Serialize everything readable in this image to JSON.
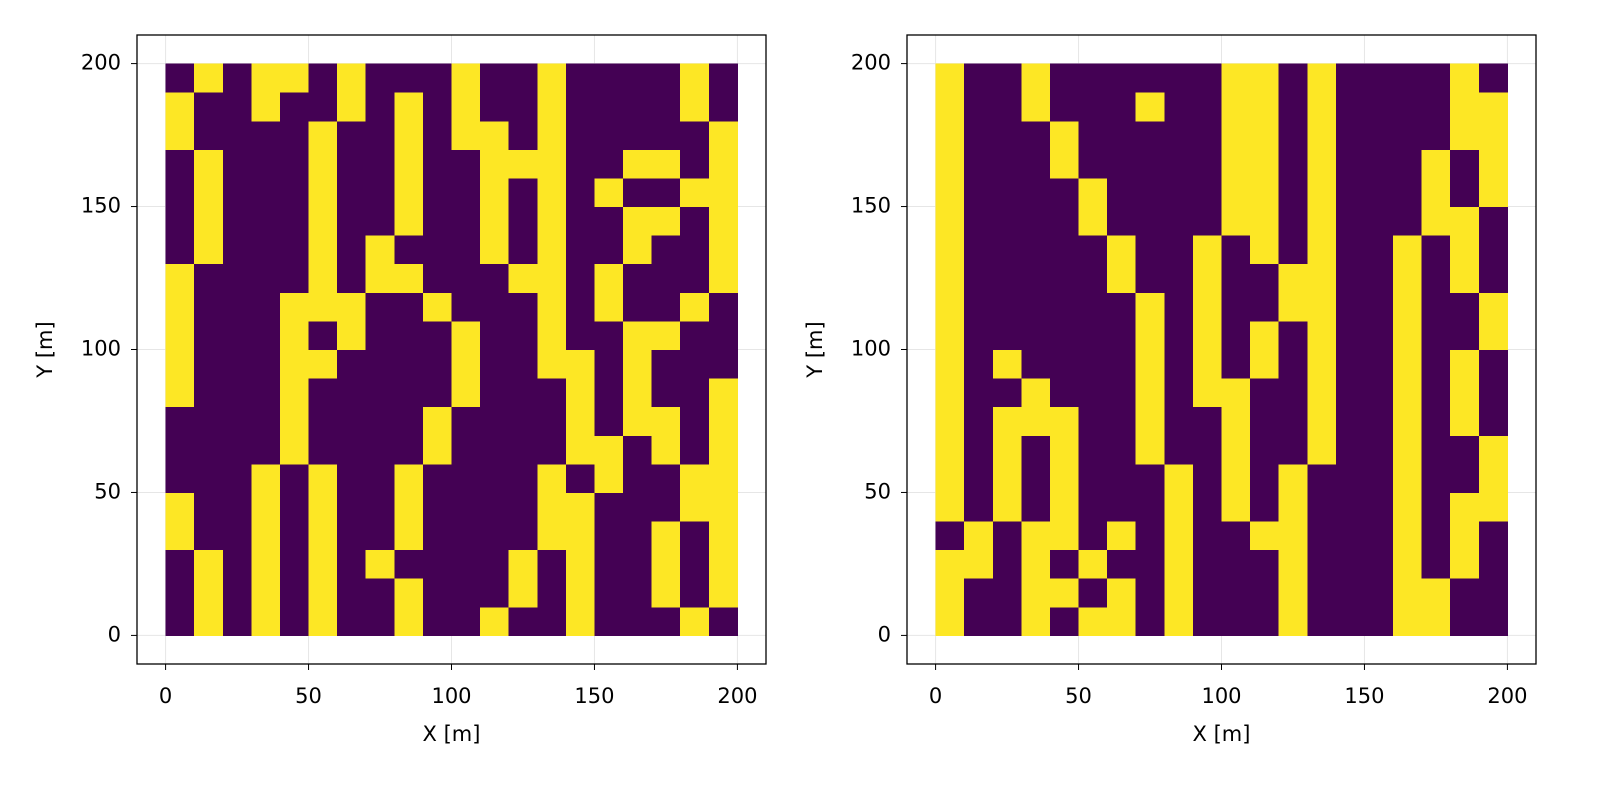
{
  "chart_data": [
    {
      "type": "heatmap",
      "xlabel": "X [m]",
      "ylabel": "Y [m]",
      "xlim": [
        -10,
        210
      ],
      "ylim": [
        -10,
        210
      ],
      "xticks": [
        0,
        50,
        100,
        150,
        200
      ],
      "yticks": [
        0,
        50,
        100,
        150,
        200
      ],
      "grid": true,
      "colors": [
        "#440154",
        "#fde725"
      ],
      "xbins": [
        0,
        10,
        20,
        30,
        40,
        50,
        60,
        70,
        80,
        90,
        100,
        110,
        120,
        130,
        140,
        150,
        160,
        170,
        180,
        190,
        200
      ],
      "ybins": [
        0,
        10,
        20,
        30,
        40,
        50,
        60,
        70,
        80,
        90,
        100,
        110,
        120,
        130,
        140,
        150,
        160,
        170,
        180,
        190,
        200
      ],
      "z": [
        [
          0,
          1,
          0,
          1,
          0,
          1,
          0,
          0,
          1,
          0,
          0,
          1,
          0,
          0,
          1,
          0,
          0,
          0,
          1,
          0
        ],
        [
          0,
          1,
          0,
          1,
          0,
          1,
          0,
          0,
          1,
          0,
          0,
          0,
          1,
          0,
          1,
          0,
          0,
          1,
          0,
          1
        ],
        [
          0,
          1,
          0,
          1,
          0,
          1,
          0,
          1,
          0,
          0,
          0,
          0,
          1,
          0,
          1,
          0,
          0,
          1,
          0,
          1
        ],
        [
          1,
          0,
          0,
          1,
          0,
          1,
          0,
          0,
          1,
          0,
          0,
          0,
          0,
          1,
          1,
          0,
          0,
          1,
          0,
          1
        ],
        [
          1,
          0,
          0,
          1,
          0,
          1,
          0,
          0,
          1,
          0,
          0,
          0,
          0,
          1,
          1,
          0,
          0,
          0,
          1,
          1
        ],
        [
          0,
          0,
          0,
          1,
          0,
          1,
          0,
          0,
          1,
          0,
          0,
          0,
          0,
          1,
          0,
          1,
          0,
          0,
          1,
          1
        ],
        [
          0,
          0,
          0,
          0,
          1,
          0,
          0,
          0,
          0,
          1,
          0,
          0,
          0,
          0,
          1,
          1,
          0,
          1,
          0,
          1
        ],
        [
          0,
          0,
          0,
          0,
          1,
          0,
          0,
          0,
          0,
          1,
          0,
          0,
          0,
          0,
          1,
          0,
          1,
          1,
          0,
          1
        ],
        [
          1,
          0,
          0,
          0,
          1,
          0,
          0,
          0,
          0,
          0,
          1,
          0,
          0,
          0,
          1,
          0,
          1,
          0,
          0,
          1
        ],
        [
          1,
          0,
          0,
          0,
          1,
          1,
          0,
          0,
          0,
          0,
          1,
          0,
          0,
          1,
          1,
          0,
          1,
          0,
          0,
          0
        ],
        [
          1,
          0,
          0,
          0,
          1,
          0,
          1,
          0,
          0,
          0,
          1,
          0,
          0,
          1,
          0,
          0,
          1,
          1,
          0,
          0
        ],
        [
          1,
          0,
          0,
          0,
          1,
          1,
          1,
          0,
          0,
          1,
          0,
          0,
          0,
          1,
          0,
          1,
          0,
          0,
          1,
          0
        ],
        [
          1,
          0,
          0,
          0,
          0,
          1,
          0,
          1,
          1,
          0,
          0,
          0,
          1,
          1,
          0,
          1,
          0,
          0,
          0,
          1
        ],
        [
          0,
          1,
          0,
          0,
          0,
          1,
          0,
          1,
          0,
          0,
          0,
          1,
          0,
          1,
          0,
          0,
          1,
          0,
          0,
          1
        ],
        [
          0,
          1,
          0,
          0,
          0,
          1,
          0,
          0,
          1,
          0,
          0,
          1,
          0,
          1,
          0,
          0,
          1,
          1,
          0,
          1
        ],
        [
          0,
          1,
          0,
          0,
          0,
          1,
          0,
          0,
          1,
          0,
          0,
          1,
          0,
          1,
          0,
          1,
          0,
          0,
          1,
          1
        ],
        [
          0,
          1,
          0,
          0,
          0,
          1,
          0,
          0,
          1,
          0,
          0,
          1,
          1,
          1,
          0,
          0,
          1,
          1,
          0,
          1
        ],
        [
          1,
          0,
          0,
          0,
          0,
          1,
          0,
          0,
          1,
          0,
          1,
          1,
          0,
          1,
          0,
          0,
          0,
          0,
          0,
          1
        ],
        [
          1,
          0,
          0,
          1,
          0,
          0,
          1,
          0,
          1,
          0,
          1,
          0,
          0,
          1,
          0,
          0,
          0,
          0,
          1,
          0
        ],
        [
          0,
          1,
          0,
          1,
          1,
          0,
          1,
          0,
          0,
          0,
          1,
          0,
          0,
          1,
          0,
          0,
          0,
          0,
          1,
          0
        ]
      ]
    },
    {
      "type": "heatmap",
      "xlabel": "X [m]",
      "ylabel": "Y [m]",
      "xlim": [
        -10,
        210
      ],
      "ylim": [
        -10,
        210
      ],
      "xticks": [
        0,
        50,
        100,
        150,
        200
      ],
      "yticks": [
        0,
        50,
        100,
        150,
        200
      ],
      "grid": true,
      "colors": [
        "#440154",
        "#fde725"
      ],
      "xbins": [
        0,
        10,
        20,
        30,
        40,
        50,
        60,
        70,
        80,
        90,
        100,
        110,
        120,
        130,
        140,
        150,
        160,
        170,
        180,
        190,
        200
      ],
      "ybins": [
        0,
        10,
        20,
        30,
        40,
        50,
        60,
        70,
        80,
        90,
        100,
        110,
        120,
        130,
        140,
        150,
        160,
        170,
        180,
        190,
        200
      ],
      "z": [
        [
          1,
          0,
          0,
          1,
          0,
          1,
          1,
          0,
          1,
          0,
          0,
          0,
          1,
          0,
          0,
          0,
          1,
          1,
          0,
          0
        ],
        [
          1,
          0,
          0,
          1,
          1,
          0,
          1,
          0,
          1,
          0,
          0,
          0,
          1,
          0,
          0,
          0,
          1,
          1,
          0,
          0
        ],
        [
          1,
          1,
          0,
          1,
          0,
          1,
          0,
          0,
          1,
          0,
          0,
          0,
          1,
          0,
          0,
          0,
          1,
          0,
          1,
          0
        ],
        [
          0,
          1,
          0,
          1,
          1,
          0,
          1,
          0,
          1,
          0,
          0,
          1,
          1,
          0,
          0,
          0,
          1,
          0,
          1,
          0
        ],
        [
          1,
          0,
          1,
          0,
          1,
          0,
          0,
          0,
          1,
          0,
          1,
          0,
          1,
          0,
          0,
          0,
          1,
          0,
          1,
          1
        ],
        [
          1,
          0,
          1,
          0,
          1,
          0,
          0,
          0,
          1,
          0,
          1,
          0,
          1,
          0,
          0,
          0,
          1,
          0,
          0,
          1
        ],
        [
          1,
          0,
          1,
          0,
          1,
          0,
          0,
          1,
          0,
          0,
          1,
          0,
          0,
          1,
          0,
          0,
          1,
          0,
          0,
          1
        ],
        [
          1,
          0,
          1,
          1,
          1,
          0,
          0,
          1,
          0,
          0,
          1,
          0,
          0,
          1,
          0,
          0,
          1,
          0,
          1,
          0
        ],
        [
          1,
          0,
          0,
          1,
          0,
          0,
          0,
          1,
          0,
          1,
          1,
          0,
          0,
          1,
          0,
          0,
          1,
          0,
          1,
          0
        ],
        [
          1,
          0,
          1,
          0,
          0,
          0,
          0,
          1,
          0,
          1,
          0,
          1,
          0,
          1,
          0,
          0,
          1,
          0,
          1,
          0
        ],
        [
          1,
          0,
          0,
          0,
          0,
          0,
          0,
          1,
          0,
          1,
          0,
          1,
          0,
          1,
          0,
          0,
          1,
          0,
          0,
          1
        ],
        [
          1,
          0,
          0,
          0,
          0,
          0,
          0,
          1,
          0,
          1,
          0,
          0,
          1,
          1,
          0,
          0,
          1,
          0,
          0,
          1
        ],
        [
          1,
          0,
          0,
          0,
          0,
          0,
          1,
          0,
          0,
          1,
          0,
          0,
          1,
          1,
          0,
          0,
          1,
          0,
          1,
          0
        ],
        [
          1,
          0,
          0,
          0,
          0,
          0,
          1,
          0,
          0,
          1,
          0,
          1,
          0,
          1,
          0,
          0,
          1,
          0,
          1,
          0
        ],
        [
          1,
          0,
          0,
          0,
          0,
          1,
          0,
          0,
          0,
          0,
          1,
          1,
          0,
          1,
          0,
          0,
          0,
          1,
          1,
          0
        ],
        [
          1,
          0,
          0,
          0,
          0,
          1,
          0,
          0,
          0,
          0,
          1,
          1,
          0,
          1,
          0,
          0,
          0,
          1,
          0,
          1
        ],
        [
          1,
          0,
          0,
          0,
          1,
          0,
          0,
          0,
          0,
          0,
          1,
          1,
          0,
          1,
          0,
          0,
          0,
          1,
          0,
          1
        ],
        [
          1,
          0,
          0,
          0,
          1,
          0,
          0,
          0,
          0,
          0,
          1,
          1,
          0,
          1,
          0,
          0,
          0,
          0,
          1,
          1
        ],
        [
          1,
          0,
          0,
          1,
          0,
          0,
          0,
          1,
          0,
          0,
          1,
          1,
          0,
          1,
          0,
          0,
          0,
          0,
          1,
          1
        ],
        [
          1,
          0,
          0,
          1,
          0,
          0,
          0,
          0,
          0,
          0,
          1,
          1,
          0,
          1,
          0,
          0,
          0,
          0,
          1,
          0
        ]
      ]
    }
  ]
}
